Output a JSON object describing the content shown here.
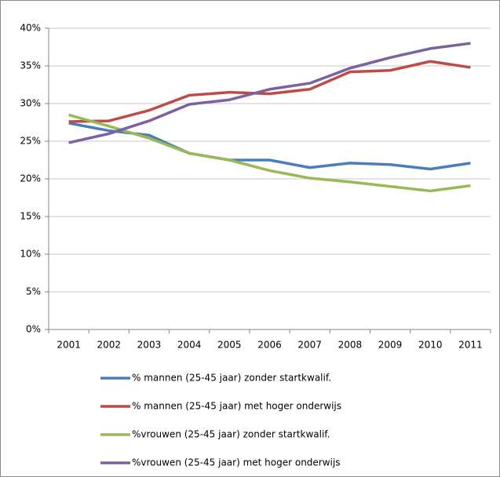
{
  "chart_data": {
    "type": "line",
    "categories": [
      "2001",
      "2002",
      "2003",
      "2004",
      "2005",
      "2006",
      "2007",
      "2008",
      "2009",
      "2010",
      "2011"
    ],
    "series": [
      {
        "name": "% mannen (25-45 jaar) zonder startkwalif.",
        "color": "#4a7ebb",
        "values": [
          27.4,
          26.4,
          25.8,
          23.4,
          22.5,
          22.5,
          21.5,
          22.1,
          21.9,
          21.3,
          22.1
        ]
      },
      {
        "name": "% mannen (25-45 jaar) met hoger onderwijs",
        "color": "#be4b48",
        "values": [
          27.6,
          27.7,
          29.1,
          31.1,
          31.5,
          31.3,
          31.9,
          34.2,
          34.4,
          35.6,
          34.8
        ]
      },
      {
        "name": "%vrouwen (25-45 jaar) zonder startkwalif.",
        "color": "#98b954",
        "values": [
          28.5,
          27.0,
          25.4,
          23.4,
          22.5,
          21.1,
          20.1,
          19.6,
          19.0,
          18.4,
          19.1
        ]
      },
      {
        "name": "%vrouwen (25-45 jaar) met hoger onderwijs",
        "color": "#7d60a0",
        "values": [
          24.8,
          26.0,
          27.7,
          29.9,
          30.5,
          31.9,
          32.7,
          34.7,
          36.1,
          37.3,
          38.0
        ]
      }
    ],
    "ylim": [
      0,
      40
    ],
    "yticks": [
      {
        "value": 0,
        "label": "0%"
      },
      {
        "value": 5,
        "label": "5%"
      },
      {
        "value": 10,
        "label": "10%"
      },
      {
        "value": 15,
        "label": "15%"
      },
      {
        "value": 20,
        "label": "20%"
      },
      {
        "value": 25,
        "label": "25%"
      },
      {
        "value": 30,
        "label": "30%"
      },
      {
        "value": 35,
        "label": "35%"
      },
      {
        "value": 40,
        "label": "40%"
      }
    ],
    "grid": true,
    "legend": "bottom"
  }
}
